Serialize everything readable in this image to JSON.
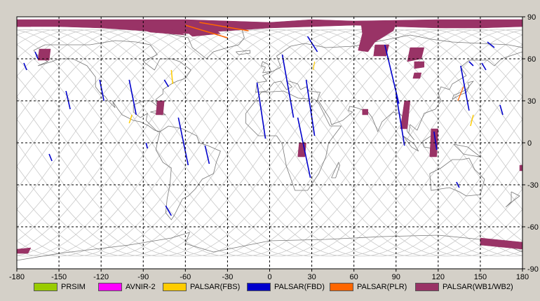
{
  "map": {
    "x_ticks": [
      "-180",
      "-150",
      "-120",
      "-90",
      "-60",
      "-30",
      "0",
      "30",
      "60",
      "90",
      "120",
      "150",
      "180"
    ],
    "y_ticks": [
      "90",
      "60",
      "30",
      "0",
      "-30",
      "-60",
      "-90"
    ],
    "legend": [
      {
        "label": "PRSIM",
        "color": "#99cc00"
      },
      {
        "label": "AVNIR-2",
        "color": "#ff00ff"
      },
      {
        "label": "PALSAR(FBS)",
        "color": "#ffcc00"
      },
      {
        "label": "PALSAR(FBD)",
        "color": "#0000cc"
      },
      {
        "label": "PALSAR(PLR)",
        "color": "#ff6600"
      },
      {
        "label": "PALSAR(WB1/WB2)",
        "color": "#993366"
      }
    ],
    "colors": {
      "frame_bg": "#d4d0c8",
      "map_bg": "#ffffff",
      "coast": "#777777",
      "orbit": "#c8c8c8",
      "grid": "#000000"
    }
  }
}
